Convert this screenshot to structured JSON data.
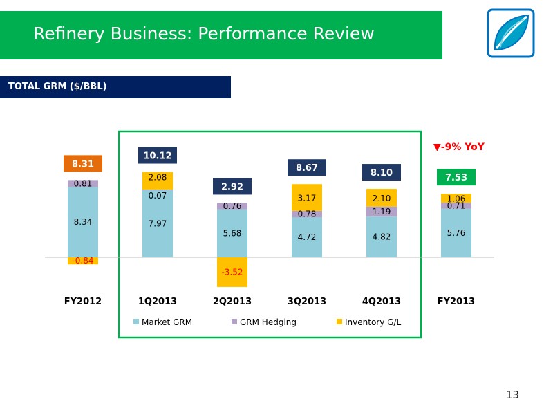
{
  "slide": {
    "title": "Refinery Business: Performance Review",
    "section_label": "TOTAL GRM ($/BBL)",
    "page_number": "13",
    "yoy_label": "▼-9% YoY"
  },
  "colors": {
    "title_bar": "#00b050",
    "section_bar": "#002060",
    "market_grm": "#92cddc",
    "grm_hedging": "#b3a2c7",
    "inventory_gl": "#ffc000",
    "total_box": "#1f3864",
    "fy2012_total_box": "#e46c0a",
    "fy2013_total_box": "#00b050",
    "highlight_frame": "#00b050",
    "negative_text": "#ff0000",
    "yoy_text": "#ff0000"
  },
  "chart_data": {
    "type": "bar",
    "stacked": true,
    "categories": [
      "FY2012",
      "1Q2013",
      "2Q2013",
      "3Q2013",
      "4Q2013",
      "FY2013"
    ],
    "series": [
      {
        "name": "Market GRM",
        "values": [
          8.34,
          7.97,
          5.68,
          4.72,
          4.82,
          5.76
        ]
      },
      {
        "name": "GRM Hedging",
        "values": [
          0.81,
          0.07,
          0.76,
          0.78,
          1.19,
          0.71
        ]
      },
      {
        "name": "Inventory G/L",
        "values": [
          -0.84,
          2.08,
          -3.52,
          3.17,
          2.1,
          1.06
        ]
      }
    ],
    "totals": [
      "8.31",
      "10.12",
      "2.92",
      "8.67",
      "8.10",
      "7.53"
    ],
    "value_labels": [
      [
        "8.34",
        "7.97",
        "5.68",
        "4.72",
        "4.82",
        "5.76"
      ],
      [
        "0.81",
        "0.07",
        "0.76",
        "0.78",
        "1.19",
        "0.71"
      ],
      [
        "-0.84",
        "2.08",
        "-3.52",
        "3.17",
        "2.10",
        "1.06"
      ]
    ],
    "legend_position": "bottom",
    "grid": false
  }
}
